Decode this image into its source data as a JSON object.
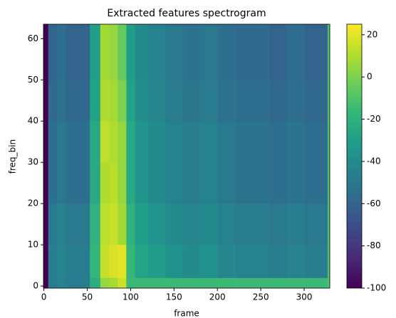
{
  "chart_data": {
    "type": "heatmap",
    "title": "Extracted features spectrogram",
    "x_label": "frame",
    "y_label": "freq_bin",
    "colormap": "viridis",
    "xlim": [
      -0.5,
      329.5
    ],
    "ylim": [
      -0.5,
      63.5
    ],
    "xticks": [
      0,
      50,
      100,
      150,
      200,
      250,
      300
    ],
    "yticks": [
      0,
      10,
      20,
      30,
      40,
      50,
      60
    ],
    "x_edges": [
      -0.5,
      5,
      15,
      25,
      35,
      45,
      53,
      65,
      75,
      85,
      95,
      105,
      120,
      140,
      160,
      180,
      200,
      220,
      240,
      260,
      280,
      300,
      320,
      327,
      329.5
    ],
    "y_edges": [
      -0.5,
      2,
      10,
      20,
      30,
      40,
      50,
      63.5
    ],
    "z": [
      [
        -100,
        -48,
        -45,
        -48,
        -48,
        -48,
        -22,
        5,
        8,
        15,
        -15,
        -15,
        -15,
        -15,
        -15,
        -15,
        -15,
        -15,
        -15,
        -15,
        -15,
        -15,
        -15,
        -10
      ],
      [
        -100,
        -47,
        -42,
        -47,
        -47,
        -47,
        -17,
        14,
        18,
        20,
        -17,
        -27,
        -32,
        -37,
        -40,
        -37,
        -42,
        -44,
        -44,
        -47,
        -44,
        -47,
        -47,
        -10
      ],
      [
        -100,
        -50,
        -45,
        -50,
        -50,
        -50,
        -20,
        12,
        15,
        8,
        -20,
        -30,
        -35,
        -40,
        -43,
        -40,
        -45,
        -47,
        -47,
        -50,
        -47,
        -50,
        -50,
        -10
      ],
      [
        -100,
        -55,
        -50,
        -55,
        -55,
        -55,
        -25,
        10,
        12,
        5,
        -25,
        -35,
        -40,
        -45,
        -48,
        -45,
        -50,
        -52,
        -52,
        -55,
        -52,
        -55,
        -55,
        -10
      ],
      [
        -100,
        -55,
        -50,
        -55,
        -55,
        -55,
        -25,
        13,
        10,
        5,
        -25,
        -35,
        -40,
        -45,
        -48,
        -45,
        -50,
        -52,
        -52,
        -55,
        -52,
        -55,
        -55,
        -10
      ],
      [
        -100,
        -58,
        -53,
        -58,
        -58,
        -58,
        -28,
        10,
        8,
        0,
        -28,
        -38,
        -43,
        -48,
        -51,
        -48,
        -53,
        -55,
        -55,
        -58,
        -55,
        -58,
        -58,
        -10
      ],
      [
        -100,
        -60,
        -55,
        -60,
        -60,
        -60,
        -30,
        8,
        5,
        -5,
        -30,
        -40,
        -45,
        -50,
        -53,
        -50,
        -55,
        -57,
        -57,
        -60,
        -55,
        -60,
        -60,
        -10
      ]
    ],
    "clim": [
      -100,
      25
    ],
    "cticks": [
      -100,
      -80,
      -60,
      -40,
      -20,
      0,
      20
    ]
  }
}
